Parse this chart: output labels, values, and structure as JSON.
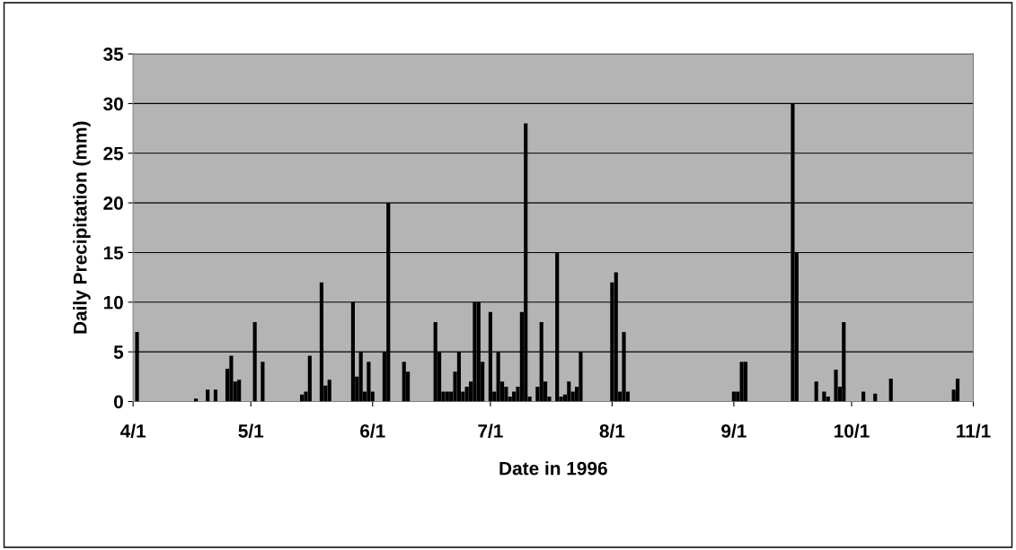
{
  "chart_data": {
    "type": "bar",
    "xlabel": "Date in 1996",
    "ylabel": "Daily Precipitation (mm)",
    "color": "#000000",
    "grid": "y",
    "x": [
      "1996-04-02",
      "1996-04-17",
      "1996-04-20",
      "1996-04-22",
      "1996-04-25",
      "1996-04-26",
      "1996-04-27",
      "1996-04-28",
      "1996-05-02",
      "1996-05-04",
      "1996-05-14",
      "1996-05-15",
      "1996-05-16",
      "1996-05-19",
      "1996-05-20",
      "1996-05-21",
      "1996-05-27",
      "1996-05-28",
      "1996-05-29",
      "1996-05-30",
      "1996-05-31",
      "1996-06-01",
      "1996-06-04",
      "1996-06-05",
      "1996-06-09",
      "1996-06-10",
      "1996-06-17",
      "1996-06-18",
      "1996-06-19",
      "1996-06-20",
      "1996-06-21",
      "1996-06-22",
      "1996-06-23",
      "1996-06-24",
      "1996-06-25",
      "1996-06-26",
      "1996-06-27",
      "1996-06-28",
      "1996-06-29",
      "1996-07-01",
      "1996-07-02",
      "1996-07-03",
      "1996-07-04",
      "1996-07-05",
      "1996-07-06",
      "1996-07-07",
      "1996-07-08",
      "1996-07-09",
      "1996-07-10",
      "1996-07-11",
      "1996-07-13",
      "1996-07-14",
      "1996-07-15",
      "1996-07-16",
      "1996-07-18",
      "1996-07-19",
      "1996-07-20",
      "1996-07-21",
      "1996-07-22",
      "1996-07-23",
      "1996-07-24",
      "1996-08-01",
      "1996-08-02",
      "1996-08-03",
      "1996-08-04",
      "1996-08-05",
      "1996-09-01",
      "1996-09-02",
      "1996-09-03",
      "1996-09-04",
      "1996-09-16",
      "1996-09-17",
      "1996-09-22",
      "1996-09-24",
      "1996-09-25",
      "1996-09-27",
      "1996-09-28",
      "1996-09-29",
      "1996-10-04",
      "1996-10-07",
      "1996-10-11",
      "1996-10-27",
      "1996-10-28"
    ],
    "values": [
      7,
      0.3,
      1.2,
      1.2,
      3.3,
      4.6,
      2,
      2.2,
      8,
      4,
      0.7,
      1,
      4.6,
      12,
      1.6,
      2.2,
      10,
      2.5,
      5,
      1,
      4,
      1,
      5,
      20,
      4,
      3,
      8,
      5,
      1,
      1,
      1,
      3,
      5,
      1,
      1.5,
      2,
      10,
      10,
      4,
      9,
      1,
      5,
      2,
      1.5,
      0.5,
      1,
      1.5,
      9,
      28,
      0.5,
      1.5,
      8,
      2,
      0.5,
      15,
      0.5,
      0.7,
      2,
      1,
      1.5,
      5,
      12,
      13,
      1,
      7,
      1,
      1,
      1,
      4,
      4,
      30,
      15,
      2,
      1,
      0.5,
      3.2,
      1.5,
      8,
      1,
      0.8,
      2.3,
      1.2,
      2.3
    ],
    "xlim": [
      "1996-04-01",
      "1996-11-01"
    ],
    "xticks": [
      {
        "value": "1996-04-01",
        "label": "4/1"
      },
      {
        "value": "1996-05-01",
        "label": "5/1"
      },
      {
        "value": "1996-06-01",
        "label": "6/1"
      },
      {
        "value": "1996-07-01",
        "label": "7/1"
      },
      {
        "value": "1996-08-01",
        "label": "8/1"
      },
      {
        "value": "1996-09-01",
        "label": "9/1"
      },
      {
        "value": "1996-10-01",
        "label": "10/1"
      },
      {
        "value": "1996-11-01",
        "label": "11/1"
      }
    ],
    "ylim": [
      0,
      35
    ],
    "yticks": [
      0,
      5,
      10,
      15,
      20,
      25,
      30,
      35
    ]
  }
}
